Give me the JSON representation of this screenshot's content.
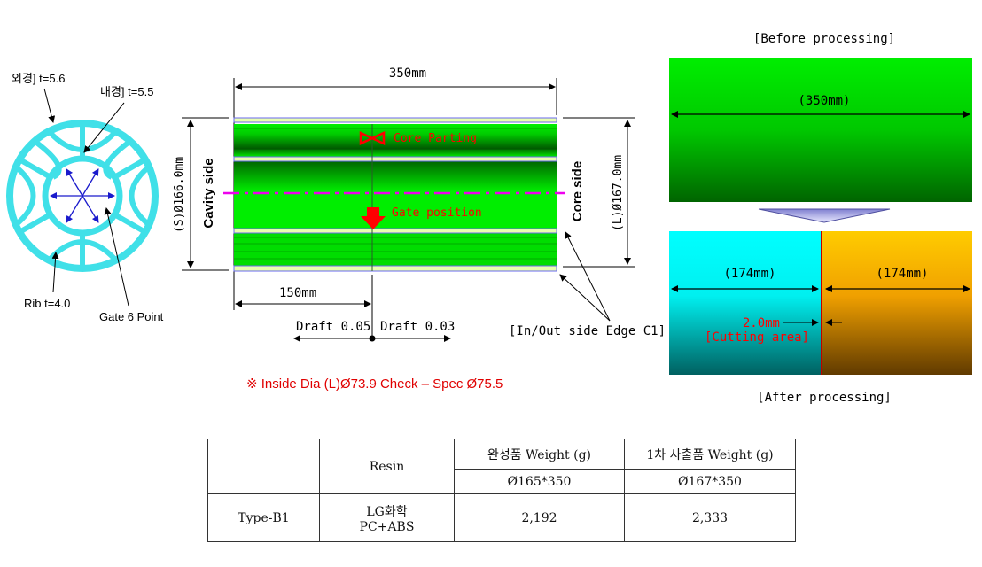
{
  "cross_section": {
    "outer_label": "외경] t=5.6",
    "inner_label": "내경] t=5.5",
    "rib_label": "Rib t=4.0",
    "gate_label": "Gate 6 Point",
    "ring_color": "#40e0e8",
    "arrow_color": "#1a1acc"
  },
  "side_view": {
    "length_label": "350mm",
    "cavity_dia": "(S)Ø166.0mm",
    "cavity_side": "Cavity side",
    "core_dia": "(L)Ø167.0mm",
    "core_side": "Core side",
    "core_parting": "Core  Parting",
    "gate_position": "Gate  position",
    "gate_offset": "150mm",
    "draft_left": "Draft 0.05",
    "draft_right": "Draft 0.03",
    "edge_note": "[In/Out side Edge C1]",
    "body_color": "#00ee00",
    "centerline_color": "#ee00ee"
  },
  "note": "※ Inside Dia (L)Ø73.9 Check – Spec Ø75.5",
  "before": {
    "title": "[Before processing]",
    "length": "(350mm)"
  },
  "after": {
    "title": "[After processing]",
    "left_length": "(174mm)",
    "right_length": "(174mm)",
    "cut_width": "2.0mm",
    "cut_label": "[Cutting area]"
  },
  "table": {
    "header_resin": "Resin",
    "header_finished": "완성품 Weight (g)",
    "header_first": "1차 사출품 Weight (g)",
    "sub_finished": "Ø165*350",
    "sub_first": "Ø167*350",
    "rows": [
      {
        "type": "Type-B1",
        "resin_line1": "LG화학",
        "resin_line2": "PC+ABS",
        "finished": "2,192",
        "first": "2,333"
      }
    ]
  }
}
